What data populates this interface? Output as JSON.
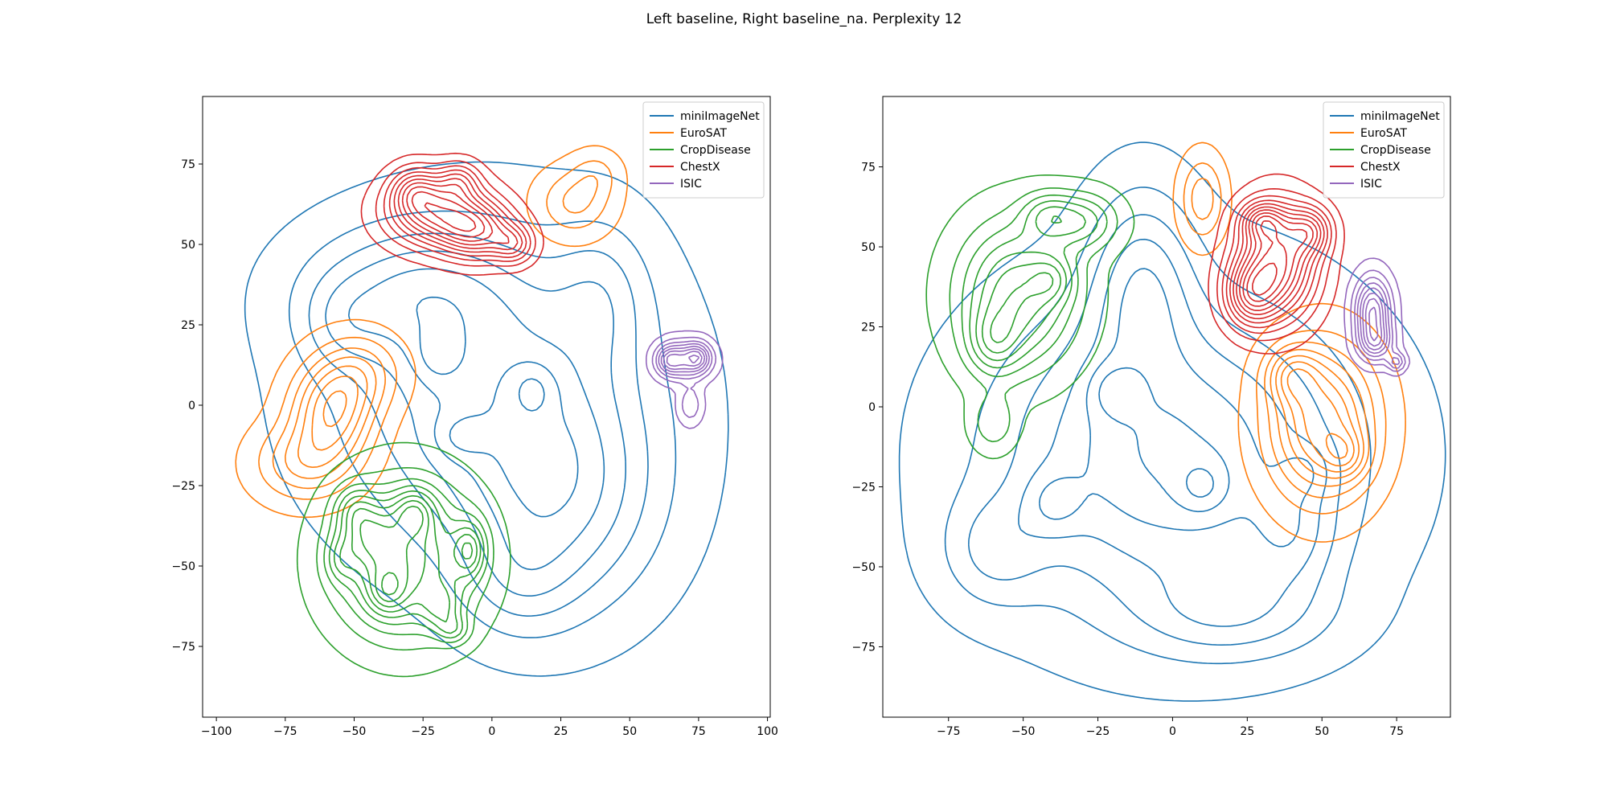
{
  "figure_title": "Left baseline, Right baseline_na. Perplexity 12",
  "colors": {
    "miniImageNet": "#1f77b4",
    "EuroSAT": "#ff7f0e",
    "CropDisease": "#2ca02c",
    "ChestX": "#d62728",
    "ISIC": "#9467bd"
  },
  "chart_data": [
    {
      "type": "kde-contour",
      "title": "",
      "xlabel": "",
      "ylabel": "",
      "xlim": [
        -105,
        101
      ],
      "ylim": [
        -97,
        96
      ],
      "xticks": [
        -100,
        -75,
        -50,
        -25,
        0,
        25,
        50,
        75,
        100
      ],
      "yticks": [
        -75,
        -50,
        -25,
        0,
        25,
        50,
        75
      ],
      "legend_position": "upper right",
      "series": [
        {
          "name": "miniImageNet",
          "levels": 7,
          "peaks": [
            {
              "x": 0,
              "y": 5,
              "sx": 38,
              "sy": 32,
              "w": 1.0
            },
            {
              "x": -30,
              "y": 35,
              "sx": 26,
              "sy": 14,
              "w": 0.7
            },
            {
              "x": 25,
              "y": -30,
              "sx": 24,
              "sy": 24,
              "w": 0.8
            },
            {
              "x": 10,
              "y": -55,
              "sx": 14,
              "sy": 12,
              "w": 0.35
            },
            {
              "x": -55,
              "y": 25,
              "sx": 10,
              "sy": 10,
              "w": 0.3
            },
            {
              "x": 40,
              "y": 35,
              "sx": 12,
              "sy": 16,
              "w": 0.4
            },
            {
              "x": 15,
              "y": 5,
              "sx": 6,
              "sy": 6,
              "w": 0.35
            },
            {
              "x": -20,
              "y": 15,
              "sx": 6,
              "sy": 6,
              "w": 0.3
            },
            {
              "x": -12,
              "y": -10,
              "sx": 7,
              "sy": 5,
              "w": 0.3
            }
          ]
        },
        {
          "name": "EuroSAT",
          "levels": 7,
          "peaks": [
            {
              "x": -58,
              "y": -2,
              "sx": 10,
              "sy": 10,
              "w": 1.0
            },
            {
              "x": -68,
              "y": -18,
              "sx": 12,
              "sy": 8,
              "w": 0.6
            },
            {
              "x": -48,
              "y": 10,
              "sx": 10,
              "sy": 8,
              "w": 0.5
            },
            {
              "x": 30,
              "y": 63,
              "sx": 9,
              "sy": 7,
              "w": 0.45
            },
            {
              "x": 38,
              "y": 72,
              "sx": 6,
              "sy": 5,
              "w": 0.25
            }
          ]
        },
        {
          "name": "CropDisease",
          "levels": 9,
          "peaks": [
            {
              "x": -32,
              "y": -48,
              "sx": 17,
              "sy": 16,
              "w": 1.0
            },
            {
              "x": -45,
              "y": -40,
              "sx": 7,
              "sy": 7,
              "w": 0.4
            },
            {
              "x": -28,
              "y": -33,
              "sx": 5,
              "sy": 5,
              "w": 0.5
            },
            {
              "x": -38,
              "y": -58,
              "sx": 5,
              "sy": 5,
              "w": 0.45
            },
            {
              "x": -8,
              "y": -45,
              "sx": 4,
              "sy": 6,
              "w": 0.6
            },
            {
              "x": -18,
              "y": -63,
              "sx": 5,
              "sy": 5,
              "w": 0.4
            },
            {
              "x": -50,
              "y": -32,
              "sx": 5,
              "sy": 5,
              "w": 0.35
            },
            {
              "x": -14,
              "y": -70,
              "sx": 4,
              "sy": 3,
              "w": 0.35
            },
            {
              "x": -55,
              "y": -48,
              "sx": 4,
              "sy": 5,
              "w": 0.3
            }
          ]
        },
        {
          "name": "ChestX",
          "levels": 10,
          "peaks": [
            {
              "x": -20,
              "y": 60,
              "sx": 12,
              "sy": 7,
              "w": 1.0
            },
            {
              "x": -5,
              "y": 54,
              "sx": 9,
              "sy": 6,
              "w": 0.8
            },
            {
              "x": -28,
              "y": 67,
              "sx": 6,
              "sy": 5,
              "w": 0.5
            },
            {
              "x": 8,
              "y": 50,
              "sx": 5,
              "sy": 4,
              "w": 0.5
            },
            {
              "x": -12,
              "y": 70,
              "sx": 5,
              "sy": 4,
              "w": 0.4
            }
          ]
        },
        {
          "name": "ISIC",
          "levels": 8,
          "peaks": [
            {
              "x": 70,
              "y": 14,
              "sx": 6,
              "sy": 4,
              "w": 1.0
            },
            {
              "x": 64,
              "y": 14,
              "sx": 3,
              "sy": 3,
              "w": 0.6
            },
            {
              "x": 75,
              "y": 15,
              "sx": 3,
              "sy": 3,
              "w": 0.6
            },
            {
              "x": 72,
              "y": 0,
              "sx": 3,
              "sy": 4,
              "w": 0.4
            }
          ]
        }
      ]
    },
    {
      "type": "kde-contour",
      "title": "",
      "xlabel": "",
      "ylabel": "",
      "xlim": [
        -97,
        93
      ],
      "ylim": [
        -97,
        97
      ],
      "xticks": [
        -75,
        -50,
        -25,
        0,
        25,
        50,
        75
      ],
      "yticks": [
        -75,
        -50,
        -25,
        0,
        25,
        50,
        75
      ],
      "legend_position": "upper right",
      "series": [
        {
          "name": "miniImageNet",
          "levels": 7,
          "peaks": [
            {
              "x": 0,
              "y": -15,
              "sx": 40,
              "sy": 33,
              "w": 1.0
            },
            {
              "x": -10,
              "y": 40,
              "sx": 12,
              "sy": 20,
              "w": 0.6
            },
            {
              "x": 20,
              "y": -65,
              "sx": 22,
              "sy": 10,
              "w": 0.4
            },
            {
              "x": 40,
              "y": -40,
              "sx": 10,
              "sy": 12,
              "w": 0.35
            },
            {
              "x": -60,
              "y": -45,
              "sx": 12,
              "sy": 12,
              "w": 0.35
            },
            {
              "x": -20,
              "y": 5,
              "sx": 6,
              "sy": 6,
              "w": 0.3
            },
            {
              "x": 10,
              "y": -25,
              "sx": 6,
              "sy": 6,
              "w": 0.3
            },
            {
              "x": -40,
              "y": -30,
              "sx": 7,
              "sy": 7,
              "w": 0.3
            },
            {
              "x": 45,
              "y": -20,
              "sx": 6,
              "sy": 6,
              "w": 0.25
            }
          ]
        },
        {
          "name": "EuroSAT",
          "levels": 8,
          "peaks": [
            {
              "x": 50,
              "y": -5,
              "sx": 12,
              "sy": 16,
              "w": 1.0
            },
            {
              "x": 40,
              "y": 10,
              "sx": 6,
              "sy": 6,
              "w": 0.5
            },
            {
              "x": 58,
              "y": -15,
              "sx": 5,
              "sy": 5,
              "w": 0.4
            },
            {
              "x": 10,
              "y": 65,
              "sx": 5,
              "sy": 9,
              "w": 0.45
            }
          ]
        },
        {
          "name": "CropDisease",
          "levels": 7,
          "peaks": [
            {
              "x": -52,
              "y": 35,
              "sx": 13,
              "sy": 15,
              "w": 1.0
            },
            {
              "x": -30,
              "y": 58,
              "sx": 8,
              "sy": 6,
              "w": 0.6
            },
            {
              "x": -60,
              "y": 20,
              "sx": 6,
              "sy": 7,
              "w": 0.5
            },
            {
              "x": -42,
              "y": 60,
              "sx": 6,
              "sy": 5,
              "w": 0.45
            },
            {
              "x": -60,
              "y": -5,
              "sx": 5,
              "sy": 6,
              "w": 0.35
            },
            {
              "x": -40,
              "y": 40,
              "sx": 5,
              "sy": 5,
              "w": 0.4
            }
          ]
        },
        {
          "name": "ChestX",
          "levels": 11,
          "peaks": [
            {
              "x": 35,
              "y": 45,
              "sx": 9,
              "sy": 12,
              "w": 1.0
            },
            {
              "x": 26,
              "y": 35,
              "sx": 6,
              "sy": 7,
              "w": 0.6
            },
            {
              "x": 46,
              "y": 55,
              "sx": 5,
              "sy": 5,
              "w": 0.5
            },
            {
              "x": 30,
              "y": 58,
              "sx": 5,
              "sy": 4,
              "w": 0.5
            }
          ]
        },
        {
          "name": "ISIC",
          "levels": 8,
          "peaks": [
            {
              "x": 67,
              "y": 30,
              "sx": 4,
              "sy": 7,
              "w": 1.0
            },
            {
              "x": 68,
              "y": 20,
              "sx": 4,
              "sy": 4,
              "w": 0.6
            },
            {
              "x": 75,
              "y": 14,
              "sx": 2,
              "sy": 2,
              "w": 0.5
            }
          ]
        }
      ]
    }
  ]
}
